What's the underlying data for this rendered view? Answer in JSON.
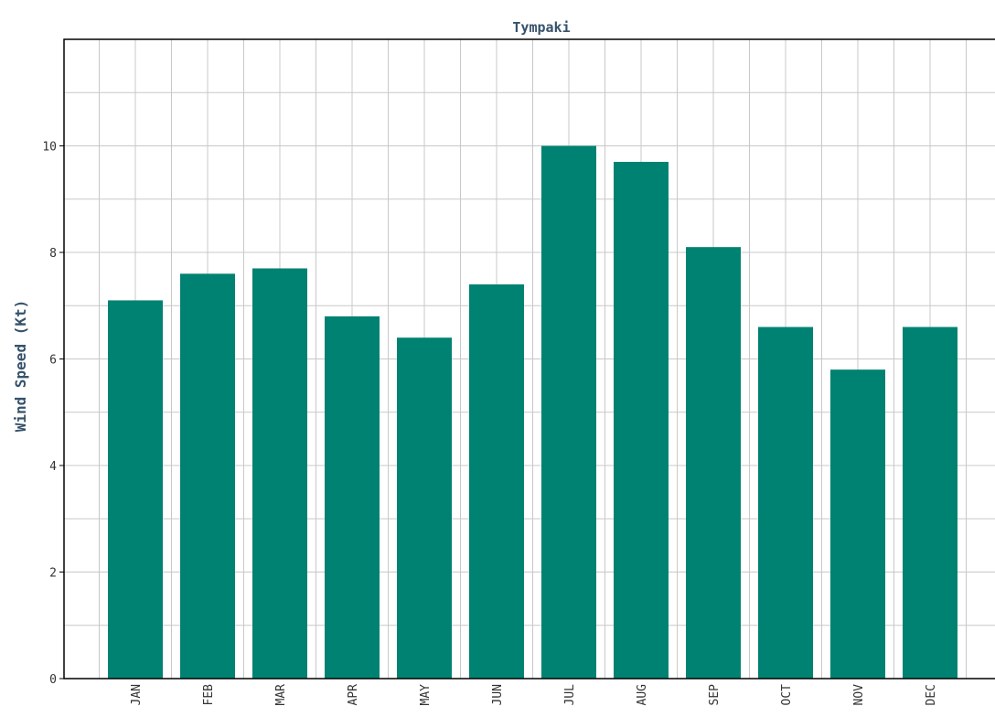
{
  "chart_data": {
    "type": "bar",
    "title": "Tympaki",
    "xlabel": "",
    "ylabel": "Wind Speed (Kt)",
    "categories": [
      "JAN",
      "FEB",
      "MAR",
      "APR",
      "MAY",
      "JUN",
      "JUL",
      "AUG",
      "SEP",
      "OCT",
      "NOV",
      "DEC"
    ],
    "values": [
      7.1,
      7.6,
      7.7,
      6.8,
      6.4,
      7.4,
      10.0,
      9.7,
      8.1,
      6.6,
      5.8,
      6.6
    ],
    "ylim": [
      0,
      12
    ],
    "yticks": [
      0,
      2,
      4,
      6,
      8,
      10
    ],
    "ytick_labels": [
      "0",
      "2",
      "4",
      "6",
      "8",
      "10"
    ],
    "grid": true,
    "legend": "none"
  },
  "colors": {
    "bar": "#008272",
    "title": "#36526b",
    "ylabel": "#36526b",
    "tick": "#333333",
    "grid": "#c8c8c8",
    "axis": "#000000"
  }
}
